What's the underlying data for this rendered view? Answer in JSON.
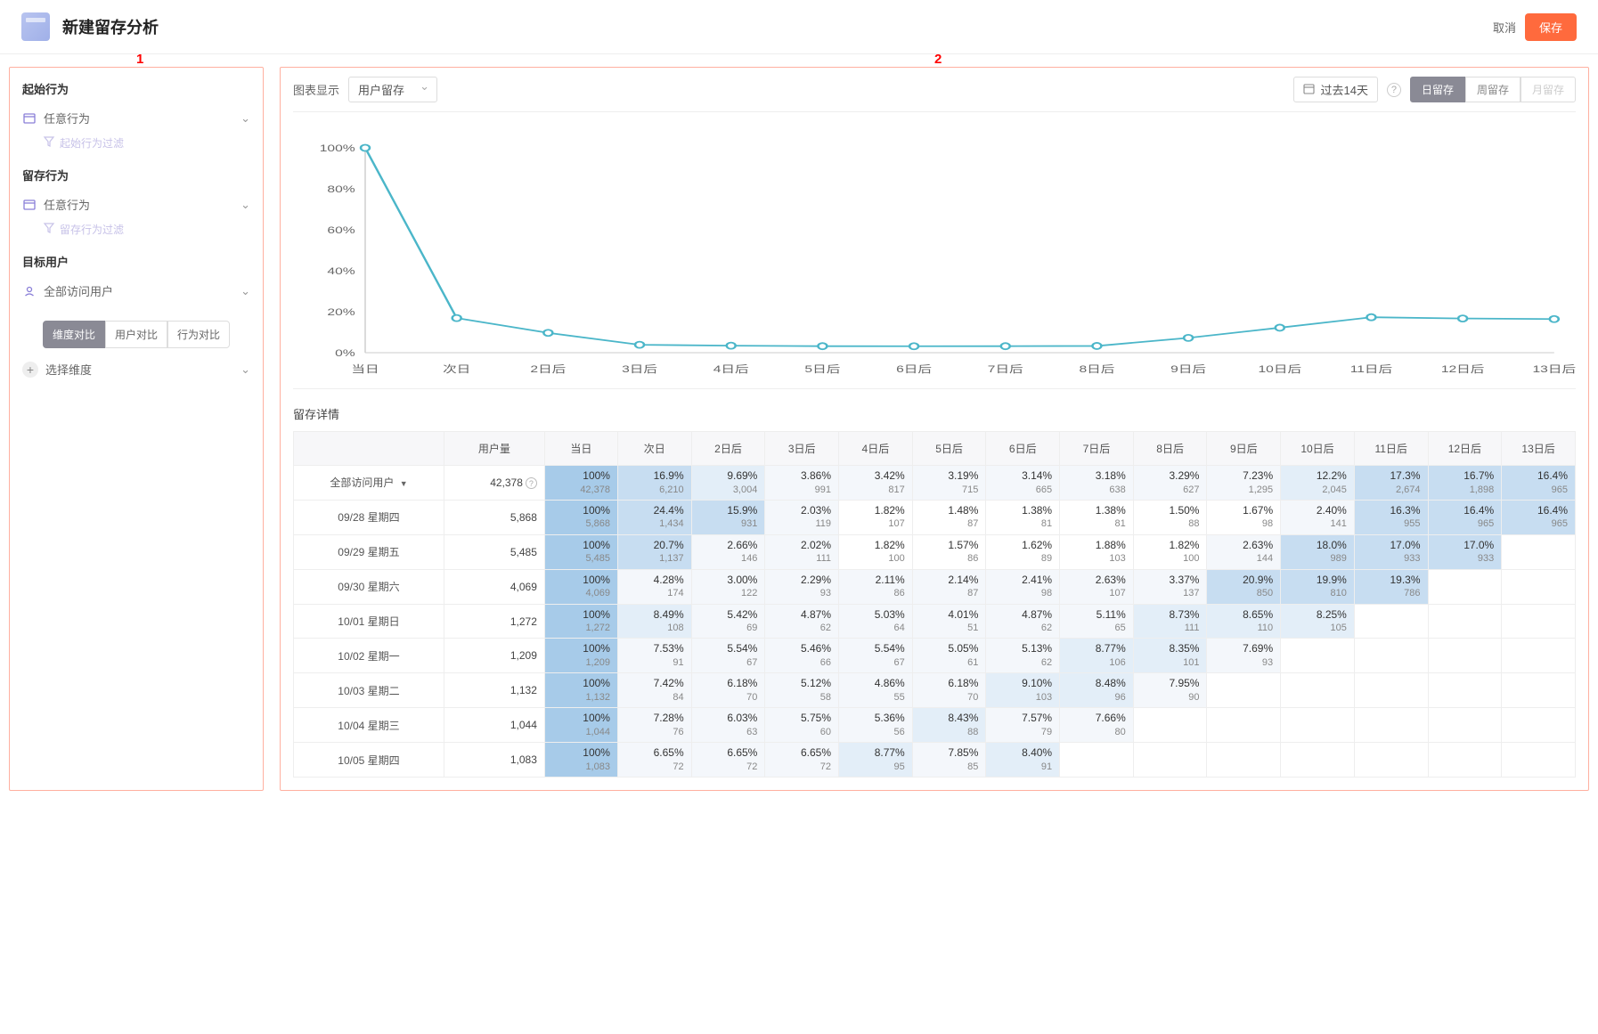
{
  "header": {
    "title": "新建留存分析",
    "cancel": "取消",
    "save": "保存"
  },
  "annotations": {
    "sidebar": "1",
    "content": "2"
  },
  "sidebar": {
    "start_label": "起始行为",
    "start_value": "任意行为",
    "start_filter_hint": "起始行为过滤",
    "retain_label": "留存行为",
    "retain_value": "任意行为",
    "retain_filter_hint": "留存行为过滤",
    "target_label": "目标用户",
    "target_value": "全部访问用户",
    "compare_tabs": [
      "维度对比",
      "用户对比",
      "行为对比"
    ],
    "compare_active": 0,
    "add_dim": "选择维度"
  },
  "toolbar": {
    "chart_label": "图表显示",
    "chart_select": "用户留存",
    "date_range": "过去14天",
    "granularity": [
      "日留存",
      "周留存",
      "月留存"
    ],
    "gran_active": 0
  },
  "chart": {
    "type": "line",
    "x_labels": [
      "当日",
      "次日",
      "2日后",
      "3日后",
      "4日后",
      "5日后",
      "6日后",
      "7日后",
      "8日后",
      "9日后",
      "10日后",
      "11日后",
      "12日后",
      "13日后"
    ],
    "y_labels": [
      "0%",
      "20%",
      "40%",
      "60%",
      "80%",
      "100%"
    ],
    "ylim": [
      0,
      100
    ],
    "values": [
      100,
      16.9,
      9.69,
      3.86,
      3.42,
      3.19,
      3.14,
      3.18,
      3.29,
      7.23,
      12.2,
      17.3,
      16.7,
      16.4
    ],
    "line_color": "#4bb6c9",
    "marker_color": "#4bb6c9",
    "marker_fill": "#ffffff",
    "axis_color": "#555555",
    "label_color": "#666666",
    "label_fontsize": 12
  },
  "details": {
    "title": "留存详情",
    "columns": [
      "",
      "用户量",
      "当日",
      "次日",
      "2日后",
      "3日后",
      "4日后",
      "5日后",
      "6日后",
      "7日后",
      "8日后",
      "9日后",
      "10日后",
      "11日后",
      "12日后",
      "13日后"
    ],
    "total_row": {
      "label": "全部访问用户",
      "users": "42,378",
      "cells": [
        {
          "pct": "100%",
          "cnt": "42,378"
        },
        {
          "pct": "16.9%",
          "cnt": "6,210"
        },
        {
          "pct": "9.69%",
          "cnt": "3,004"
        },
        {
          "pct": "3.86%",
          "cnt": "991"
        },
        {
          "pct": "3.42%",
          "cnt": "817"
        },
        {
          "pct": "3.19%",
          "cnt": "715"
        },
        {
          "pct": "3.14%",
          "cnt": "665"
        },
        {
          "pct": "3.18%",
          "cnt": "638"
        },
        {
          "pct": "3.29%",
          "cnt": "627"
        },
        {
          "pct": "7.23%",
          "cnt": "1,295"
        },
        {
          "pct": "12.2%",
          "cnt": "2,045"
        },
        {
          "pct": "17.3%",
          "cnt": "2,674"
        },
        {
          "pct": "16.7%",
          "cnt": "1,898"
        },
        {
          "pct": "16.4%",
          "cnt": "965"
        }
      ]
    },
    "rows": [
      {
        "label": "09/28 星期四",
        "users": "5,868",
        "cells": [
          {
            "pct": "100%",
            "cnt": "5,868"
          },
          {
            "pct": "24.4%",
            "cnt": "1,434"
          },
          {
            "pct": "15.9%",
            "cnt": "931"
          },
          {
            "pct": "2.03%",
            "cnt": "119"
          },
          {
            "pct": "1.82%",
            "cnt": "107"
          },
          {
            "pct": "1.48%",
            "cnt": "87"
          },
          {
            "pct": "1.38%",
            "cnt": "81"
          },
          {
            "pct": "1.38%",
            "cnt": "81"
          },
          {
            "pct": "1.50%",
            "cnt": "88"
          },
          {
            "pct": "1.67%",
            "cnt": "98"
          },
          {
            "pct": "2.40%",
            "cnt": "141"
          },
          {
            "pct": "16.3%",
            "cnt": "955"
          },
          {
            "pct": "16.4%",
            "cnt": "965"
          },
          {
            "pct": "16.4%",
            "cnt": "965"
          }
        ]
      },
      {
        "label": "09/29 星期五",
        "users": "5,485",
        "cells": [
          {
            "pct": "100%",
            "cnt": "5,485"
          },
          {
            "pct": "20.7%",
            "cnt": "1,137"
          },
          {
            "pct": "2.66%",
            "cnt": "146"
          },
          {
            "pct": "2.02%",
            "cnt": "111"
          },
          {
            "pct": "1.82%",
            "cnt": "100"
          },
          {
            "pct": "1.57%",
            "cnt": "86"
          },
          {
            "pct": "1.62%",
            "cnt": "89"
          },
          {
            "pct": "1.88%",
            "cnt": "103"
          },
          {
            "pct": "1.82%",
            "cnt": "100"
          },
          {
            "pct": "2.63%",
            "cnt": "144"
          },
          {
            "pct": "18.0%",
            "cnt": "989"
          },
          {
            "pct": "17.0%",
            "cnt": "933"
          },
          {
            "pct": "17.0%",
            "cnt": "933"
          }
        ]
      },
      {
        "label": "09/30 星期六",
        "users": "4,069",
        "cells": [
          {
            "pct": "100%",
            "cnt": "4,069"
          },
          {
            "pct": "4.28%",
            "cnt": "174"
          },
          {
            "pct": "3.00%",
            "cnt": "122"
          },
          {
            "pct": "2.29%",
            "cnt": "93"
          },
          {
            "pct": "2.11%",
            "cnt": "86"
          },
          {
            "pct": "2.14%",
            "cnt": "87"
          },
          {
            "pct": "2.41%",
            "cnt": "98"
          },
          {
            "pct": "2.63%",
            "cnt": "107"
          },
          {
            "pct": "3.37%",
            "cnt": "137"
          },
          {
            "pct": "20.9%",
            "cnt": "850"
          },
          {
            "pct": "19.9%",
            "cnt": "810"
          },
          {
            "pct": "19.3%",
            "cnt": "786"
          }
        ]
      },
      {
        "label": "10/01 星期日",
        "users": "1,272",
        "cells": [
          {
            "pct": "100%",
            "cnt": "1,272"
          },
          {
            "pct": "8.49%",
            "cnt": "108"
          },
          {
            "pct": "5.42%",
            "cnt": "69"
          },
          {
            "pct": "4.87%",
            "cnt": "62"
          },
          {
            "pct": "5.03%",
            "cnt": "64"
          },
          {
            "pct": "4.01%",
            "cnt": "51"
          },
          {
            "pct": "4.87%",
            "cnt": "62"
          },
          {
            "pct": "5.11%",
            "cnt": "65"
          },
          {
            "pct": "8.73%",
            "cnt": "111"
          },
          {
            "pct": "8.65%",
            "cnt": "110"
          },
          {
            "pct": "8.25%",
            "cnt": "105"
          }
        ]
      },
      {
        "label": "10/02 星期一",
        "users": "1,209",
        "cells": [
          {
            "pct": "100%",
            "cnt": "1,209"
          },
          {
            "pct": "7.53%",
            "cnt": "91"
          },
          {
            "pct": "5.54%",
            "cnt": "67"
          },
          {
            "pct": "5.46%",
            "cnt": "66"
          },
          {
            "pct": "5.54%",
            "cnt": "67"
          },
          {
            "pct": "5.05%",
            "cnt": "61"
          },
          {
            "pct": "5.13%",
            "cnt": "62"
          },
          {
            "pct": "8.77%",
            "cnt": "106"
          },
          {
            "pct": "8.35%",
            "cnt": "101"
          },
          {
            "pct": "7.69%",
            "cnt": "93"
          }
        ]
      },
      {
        "label": "10/03 星期二",
        "users": "1,132",
        "cells": [
          {
            "pct": "100%",
            "cnt": "1,132"
          },
          {
            "pct": "7.42%",
            "cnt": "84"
          },
          {
            "pct": "6.18%",
            "cnt": "70"
          },
          {
            "pct": "5.12%",
            "cnt": "58"
          },
          {
            "pct": "4.86%",
            "cnt": "55"
          },
          {
            "pct": "6.18%",
            "cnt": "70"
          },
          {
            "pct": "9.10%",
            "cnt": "103"
          },
          {
            "pct": "8.48%",
            "cnt": "96"
          },
          {
            "pct": "7.95%",
            "cnt": "90"
          }
        ]
      },
      {
        "label": "10/04 星期三",
        "users": "1,044",
        "cells": [
          {
            "pct": "100%",
            "cnt": "1,044"
          },
          {
            "pct": "7.28%",
            "cnt": "76"
          },
          {
            "pct": "6.03%",
            "cnt": "63"
          },
          {
            "pct": "5.75%",
            "cnt": "60"
          },
          {
            "pct": "5.36%",
            "cnt": "56"
          },
          {
            "pct": "8.43%",
            "cnt": "88"
          },
          {
            "pct": "7.57%",
            "cnt": "79"
          },
          {
            "pct": "7.66%",
            "cnt": "80"
          }
        ]
      },
      {
        "label": "10/05 星期四",
        "users": "1,083",
        "cells": [
          {
            "pct": "100%",
            "cnt": "1,083"
          },
          {
            "pct": "6.65%",
            "cnt": "72"
          },
          {
            "pct": "6.65%",
            "cnt": "72"
          },
          {
            "pct": "6.65%",
            "cnt": "72"
          },
          {
            "pct": "8.77%",
            "cnt": "95"
          },
          {
            "pct": "7.85%",
            "cnt": "85"
          },
          {
            "pct": "8.40%",
            "cnt": "91"
          }
        ]
      }
    ],
    "heatmap": {
      "base": "#ffffff",
      "low": "#f4f7fb",
      "mid": "#e3eef8",
      "high": "#c7ddf1",
      "max": "#a7cbe9"
    }
  }
}
